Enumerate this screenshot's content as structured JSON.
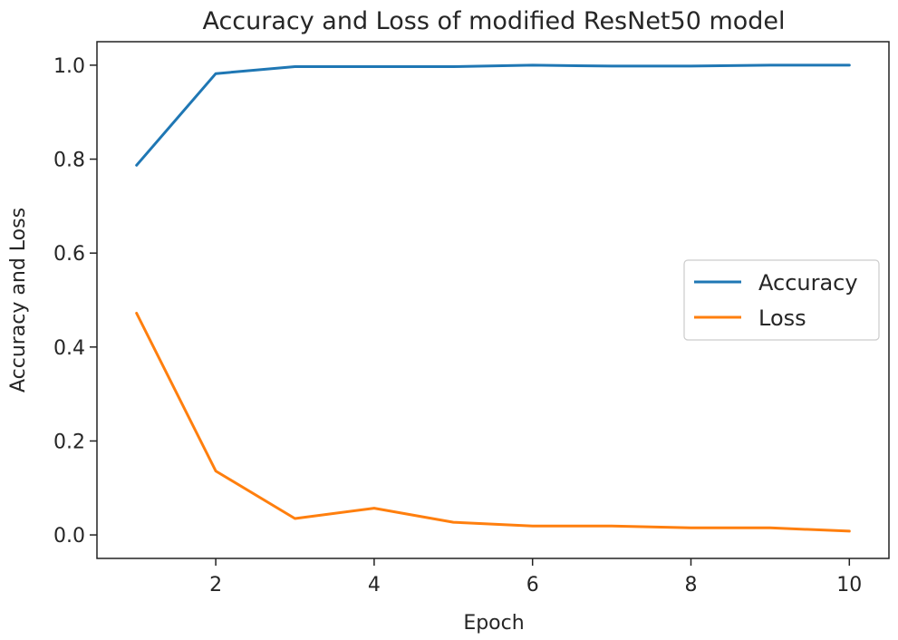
{
  "chart_data": {
    "type": "line",
    "title": "Accuracy and Loss of modified ResNet50 model",
    "xlabel": "Epoch",
    "ylabel": "Accuracy and Loss",
    "x": [
      1,
      2,
      3,
      4,
      5,
      6,
      7,
      8,
      9,
      10
    ],
    "xlim": [
      0.5,
      10.5
    ],
    "ylim": [
      -0.05,
      1.05
    ],
    "xticks": [
      2,
      4,
      6,
      8,
      10
    ],
    "yticks": [
      0.0,
      0.2,
      0.4,
      0.6,
      0.8,
      1.0
    ],
    "xtick_labels": [
      "2",
      "4",
      "6",
      "8",
      "10"
    ],
    "ytick_labels": [
      "0.0",
      "0.2",
      "0.4",
      "0.6",
      "0.8",
      "1.0"
    ],
    "grid": false,
    "legend_position": "center-right",
    "series": [
      {
        "name": "Accuracy",
        "color": "#1f77b4",
        "values": [
          0.787,
          0.982,
          0.997,
          0.997,
          0.997,
          1.0,
          0.998,
          0.998,
          1.0,
          1.0
        ]
      },
      {
        "name": "Loss",
        "color": "#ff7f0e",
        "values": [
          0.472,
          0.136,
          0.035,
          0.057,
          0.027,
          0.019,
          0.019,
          0.015,
          0.015,
          0.008
        ]
      }
    ]
  }
}
